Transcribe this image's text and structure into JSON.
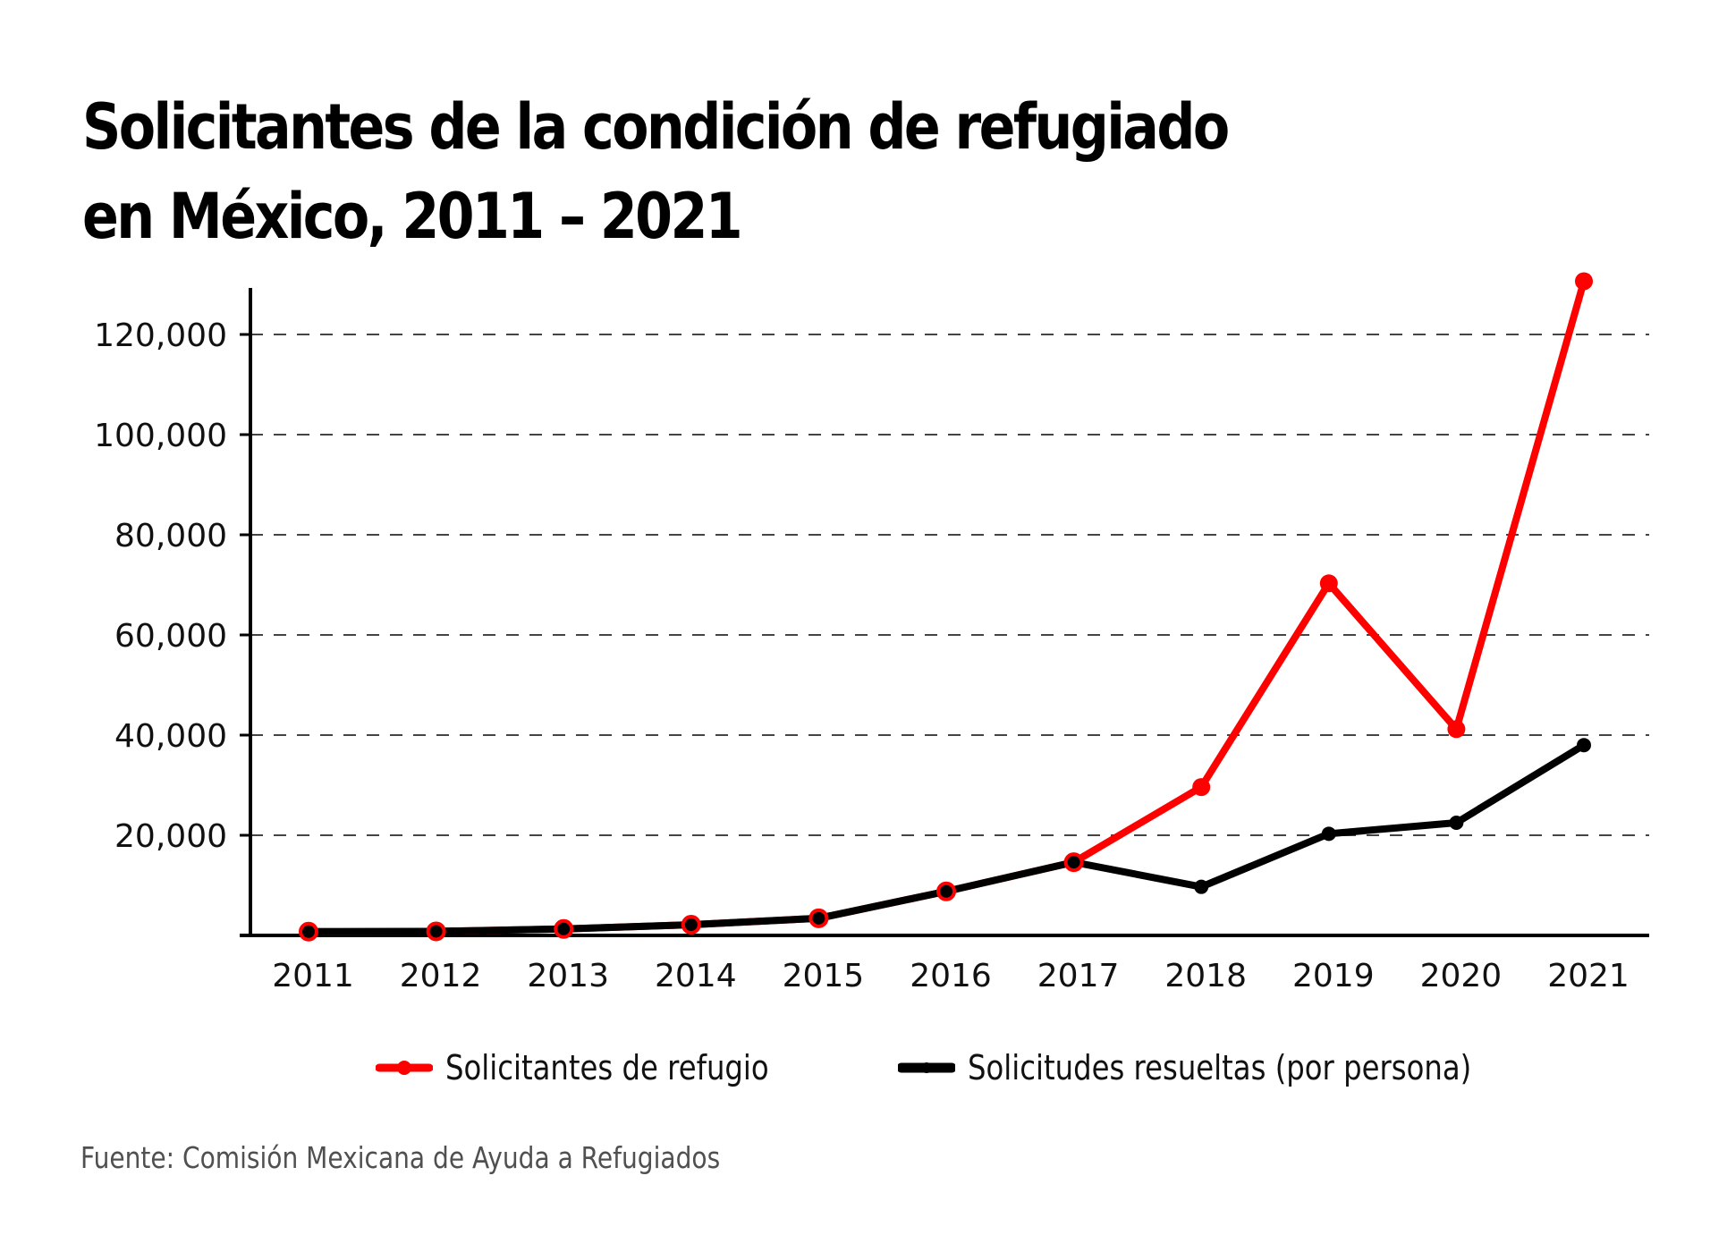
{
  "colors": {
    "red": "#ff0000",
    "black": "#000000",
    "grid": "#444444",
    "source_text": "#505050"
  },
  "legend": [
    {
      "label": "Solicitantes de refugio",
      "icon": "red-line-dot-icon"
    },
    {
      "label": "Solicitudes resueltas (por persona)",
      "icon": "black-line-dot-icon"
    }
  ],
  "source": "Fuente: Comisión Mexicana de Ayuda a Refugiados",
  "chart_data": {
    "type": "line",
    "title": "Solicitantes de la condición de refugiado en México, 2011 – 2021",
    "title_lines": [
      "Solicitantes de la condición de refugiado",
      "en México, 2011 – 2021"
    ],
    "xlabel": "",
    "ylabel": "",
    "x": [
      "2011",
      "2012",
      "2013",
      "2014",
      "2015",
      "2016",
      "2017",
      "2018",
      "2019",
      "2020",
      "2021"
    ],
    "ylim": [
      0,
      130000
    ],
    "yticks": [
      20000,
      40000,
      60000,
      80000,
      100000,
      120000
    ],
    "ytick_labels": [
      "20,000",
      "40,000",
      "60,000",
      "80,000",
      "100,000",
      "120,000"
    ],
    "grid": "horizontal-dashed",
    "legend_position": "bottom-center",
    "series": [
      {
        "name": "Solicitantes de refugio",
        "color": "#ff0000",
        "values": [
          753,
          811,
          1296,
          2137,
          3423,
          8796,
          14619,
          29623,
          70302,
          41195,
          130627
        ]
      },
      {
        "name": "Solicitudes resueltas (por persona)",
        "color": "#000000",
        "values": [
          753,
          811,
          1296,
          2137,
          3423,
          8796,
          14619,
          9700,
          20300,
          22500,
          38000
        ]
      }
    ]
  }
}
